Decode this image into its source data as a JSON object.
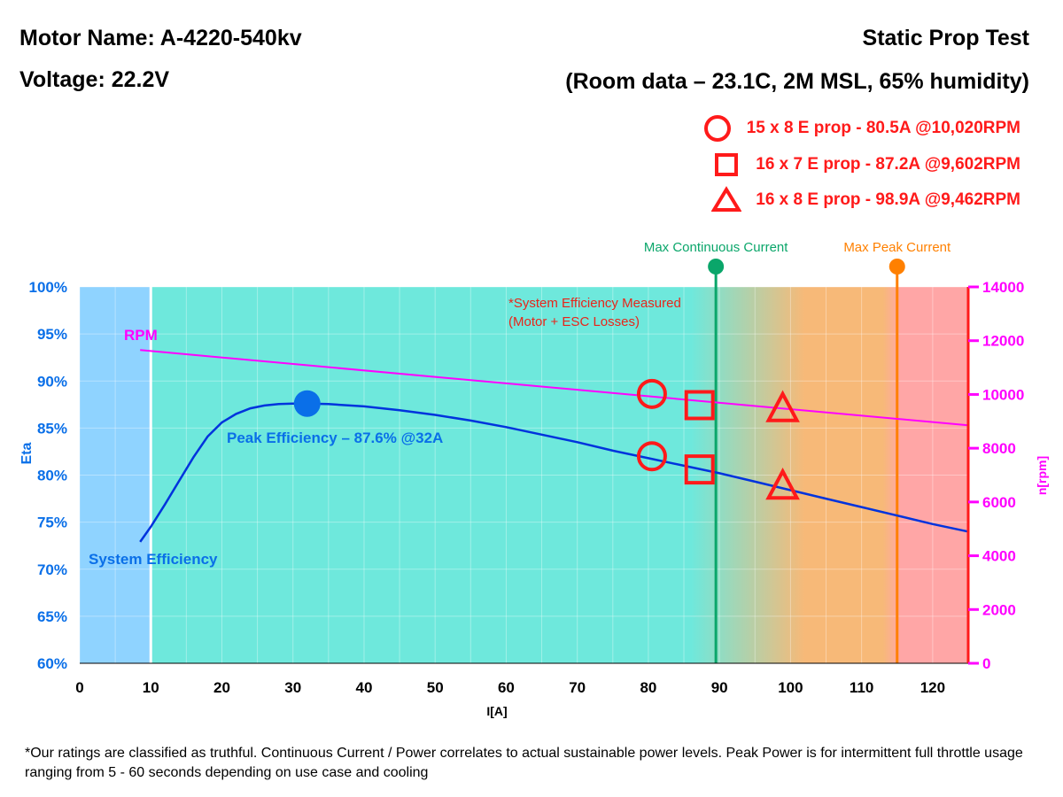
{
  "header": {
    "motor_name": "Motor Name: A-4220-540kv",
    "voltage": "Voltage: 22.2V",
    "test_type": "Static Prop Test",
    "room_data": "(Room data – 23.1C, 2M MSL, 65% humidity)"
  },
  "legend": [
    {
      "marker": "circle",
      "label": "15 x 8 E prop - 80.5A @10,020RPM"
    },
    {
      "marker": "square",
      "label": "16 x 7 E prop - 87.2A @9,602RPM"
    },
    {
      "marker": "triangle",
      "label": "16 x 8 E prop - 98.9A @9,462RPM"
    }
  ],
  "footnote": "*Our ratings are classified as truthful. Continuous Current / Power correlates to actual sustainable power levels. Peak Power is for intermittent full throttle usage ranging from 5 - 60 seconds depending on use case and cooling",
  "colors": {
    "efficiency": "#0033dd",
    "rpm": "#ff00ff",
    "marker": "#ff1a1a",
    "left_axis": "#0a6fe8",
    "right_axis": "#ff00ff",
    "continuous": "#0aa66a",
    "peak": "#ff8000"
  },
  "chart_data": {
    "type": "line",
    "xlabel": "I[A]",
    "ylabel_left": "Eta",
    "ylabel_right": "n[rpm]",
    "xlim": [
      0,
      125
    ],
    "ylim_left": [
      60,
      100
    ],
    "ylim_right": [
      0,
      14000
    ],
    "x_ticks": [
      "0",
      "10",
      "20",
      "30",
      "40",
      "50",
      "60",
      "70",
      "80",
      "90",
      "100",
      "110",
      "120"
    ],
    "y_left_ticks": [
      "60%",
      "65%",
      "70%",
      "75%",
      "80%",
      "85%",
      "90%",
      "95%",
      "100%"
    ],
    "y_right_ticks": [
      "0",
      "2000",
      "4000",
      "6000",
      "8000",
      "10000",
      "12000",
      "14000"
    ],
    "grid": true,
    "series": [
      {
        "name": "System Efficiency",
        "axis": "left",
        "x": [
          8.5,
          10,
          12,
          14,
          16,
          18,
          20,
          22,
          24,
          26,
          28,
          30,
          32,
          35,
          40,
          45,
          50,
          55,
          60,
          65,
          70,
          75,
          80,
          85,
          90,
          95,
          100,
          105,
          110,
          115,
          120,
          125
        ],
        "y": [
          72.9,
          74.5,
          76.9,
          79.4,
          81.9,
          84.1,
          85.6,
          86.5,
          87.1,
          87.4,
          87.55,
          87.6,
          87.6,
          87.55,
          87.3,
          86.9,
          86.4,
          85.8,
          85.1,
          84.3,
          83.5,
          82.6,
          81.8,
          81.0,
          80.2,
          79.3,
          78.4,
          77.5,
          76.6,
          75.7,
          74.8,
          74.0
        ]
      },
      {
        "name": "RPM",
        "axis": "right",
        "x": [
          8.5,
          125
        ],
        "y": [
          11650,
          8850
        ]
      }
    ],
    "markers": [
      {
        "shape": "circle",
        "x": 80.5,
        "eta": 82.0,
        "rpm": 10020
      },
      {
        "shape": "square",
        "x": 87.2,
        "eta": 80.6,
        "rpm": 9602
      },
      {
        "shape": "triangle",
        "x": 98.9,
        "eta": 78.8,
        "rpm": 9462
      }
    ],
    "peak_point": {
      "x": 32,
      "eta": 87.6,
      "label": "Peak Efficiency – 87.6% @32A"
    },
    "annotations": {
      "rpm_label": "RPM",
      "efficiency_label": "System Efficiency",
      "measured_note_1": "*System Efficiency Measured",
      "measured_note_2": "(Motor + ESC Losses)"
    },
    "vlines": [
      {
        "x": 10,
        "color": "#ffffff",
        "label": ""
      },
      {
        "x": 89.5,
        "color": "#0aa66a",
        "label": "Max Continuous Current"
      },
      {
        "x": 115,
        "color": "#ff8000",
        "label": "Max Peak Current"
      }
    ],
    "zones": [
      {
        "from": 0,
        "to": 10,
        "color": "#8fd3ff"
      },
      {
        "from": 10,
        "to": 90,
        "color": "#6ee8dc"
      },
      {
        "from": 90,
        "to": 110,
        "color": "#f7b978"
      },
      {
        "from": 110,
        "to": 125,
        "color": "#ffa6a6"
      }
    ]
  }
}
